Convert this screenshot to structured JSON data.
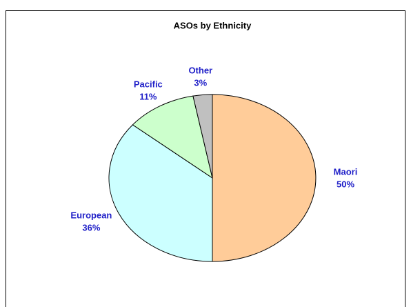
{
  "chart_data": {
    "type": "pie",
    "title": "ASOs by Ethnicity",
    "categories": [
      "Maori",
      "European",
      "Pacific",
      "Other"
    ],
    "values": [
      50,
      36,
      11,
      3
    ],
    "value_labels": [
      "50%",
      "36%",
      "11%",
      "3%"
    ],
    "colors": [
      "#ffcc99",
      "#ccffff",
      "#ccffcc",
      "#c0c0c0"
    ]
  }
}
